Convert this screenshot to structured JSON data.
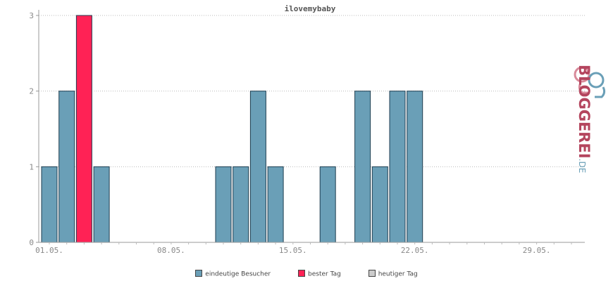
{
  "chart_data": {
    "type": "bar",
    "title": "ilovemybaby",
    "categories": [
      "01.05.",
      "02.05.",
      "03.05.",
      "04.05.",
      "05.05.",
      "06.05.",
      "07.05.",
      "08.05.",
      "09.05.",
      "10.05.",
      "11.05.",
      "12.05.",
      "13.05.",
      "14.05.",
      "15.05.",
      "16.05.",
      "17.05.",
      "18.05.",
      "19.05.",
      "20.05.",
      "21.05.",
      "22.05.",
      "23.05.",
      "24.05.",
      "25.05.",
      "26.05.",
      "27.05.",
      "28.05.",
      "29.05.",
      "30.05.",
      "31.05."
    ],
    "x_tick_labels": [
      "01.05.",
      "08.05.",
      "15.05.",
      "22.05.",
      "29.05."
    ],
    "series": [
      {
        "name": "eindeutige Besucher",
        "values": [
          1,
          2,
          3,
          1,
          0,
          0,
          0,
          0,
          0,
          0,
          1,
          1,
          2,
          1,
          0,
          0,
          1,
          0,
          2,
          1,
          2,
          2,
          0,
          0,
          0,
          0,
          0,
          0,
          0,
          0,
          0
        ]
      }
    ],
    "best_day": "03.05.",
    "ylim": [
      0,
      3
    ],
    "y_ticks": [
      0,
      1,
      2,
      3
    ],
    "grid": true,
    "legend_position": "bottom",
    "colors": {
      "bar": "#6a9fb7",
      "best": "#ff2255",
      "today": "#cccccc",
      "outline": "#1f3e50"
    }
  },
  "legend": [
    {
      "label": "eindeutige Besucher",
      "color": "#6a9fb7"
    },
    {
      "label": "bester Tag",
      "color": "#ff2255"
    },
    {
      "label": "heutiger Tag",
      "color": "#cccccc"
    }
  ],
  "logo": {
    "word": "BLOGGEREI",
    "tld": ".DE"
  }
}
